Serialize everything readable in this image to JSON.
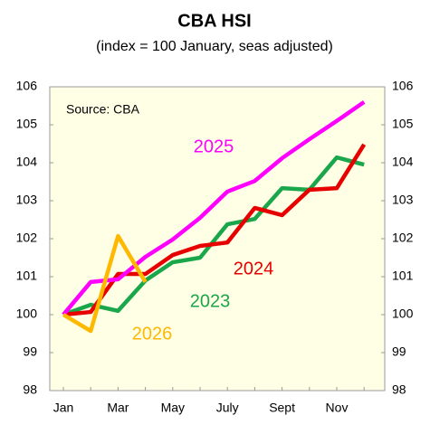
{
  "chart_data": {
    "type": "line",
    "title": "CBA HSI",
    "subtitle": "(index = 100 January, seas adjusted)",
    "annotation": "Source: CBA",
    "categories": [
      "Jan",
      null,
      "Mar",
      null,
      "May",
      null,
      "July",
      null,
      "Sept",
      null,
      "Nov",
      null
    ],
    "series": [
      {
        "name": "2025",
        "color": "#ff00ff",
        "values": [
          100,
          100.86,
          100.93,
          101.52,
          101.98,
          102.55,
          103.24,
          103.52,
          104.12,
          104.62,
          105.1,
          105.6
        ]
      },
      {
        "name": "2024",
        "color": "#e60000",
        "values": [
          100,
          100.07,
          101.07,
          101.07,
          101.57,
          101.81,
          101.9,
          102.81,
          102.62,
          103.29,
          103.33,
          104.48
        ]
      },
      {
        "name": "2023",
        "color": "#1aa64a",
        "values": [
          100,
          100.26,
          100.1,
          100.9,
          101.38,
          101.5,
          102.38,
          102.52,
          103.33,
          103.29,
          104.14,
          103.95
        ]
      },
      {
        "name": "2026",
        "color": "#ffb800",
        "values": [
          100,
          99.57,
          102.07,
          100.86,
          null,
          null,
          null,
          null,
          null,
          null,
          null,
          null
        ]
      }
    ],
    "ylim": [
      98,
      106
    ],
    "yticks": [
      98,
      99,
      100,
      101,
      102,
      103,
      104,
      105,
      106
    ],
    "y2lim": [
      98,
      106
    ],
    "y2ticks": [
      98,
      99,
      100,
      101,
      102,
      103,
      104,
      105,
      106
    ],
    "grid": false,
    "plot_background": "#ffffe6"
  }
}
